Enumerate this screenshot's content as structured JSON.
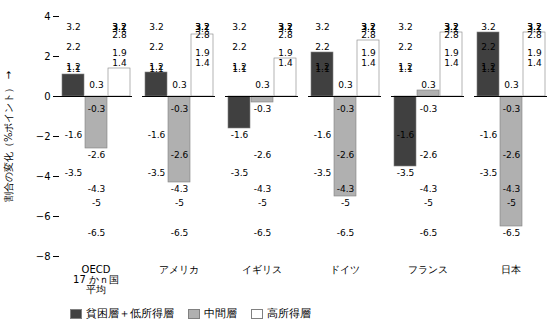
{
  "chart_data": {
    "type": "bar",
    "categories": [
      "OECD\n17 かｎ国\n平均",
      "アメリカ",
      "イギリス",
      "ドイツ",
      "フランス",
      "日本"
    ],
    "series": [
      {
        "name": "貧困層＋低所得層",
        "color": "#404040",
        "values": [
          1.1,
          1.2,
          -1.6,
          2.2,
          -3.5,
          3.2
        ]
      },
      {
        "name": "中間層",
        "color": "#b0b0b0",
        "values": [
          -2.6,
          -4.3,
          -0.3,
          -5.0,
          0.3,
          -6.5
        ]
      },
      {
        "name": "高所得層",
        "color": "white",
        "values": [
          1.4,
          3.1,
          1.9,
          2.8,
          3.2,
          3.2
        ]
      }
    ],
    "ylabel": "割合の変化（%ポイント）",
    "ylim": [
      -8,
      4
    ],
    "yticks": [
      -8,
      -6,
      -4,
      -2,
      0,
      2,
      4
    ],
    "grid": false,
    "legend": "lower left",
    "data_labels": true
  }
}
